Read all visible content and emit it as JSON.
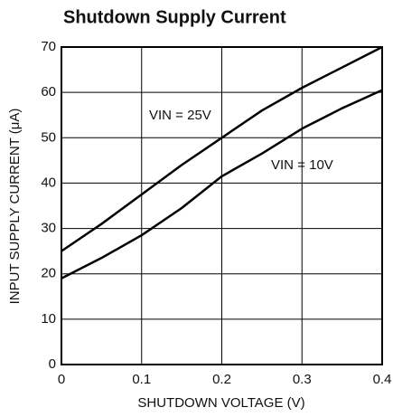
{
  "chart_data": {
    "type": "line",
    "title": "Shutdown Supply Current",
    "xlabel": "SHUTDOWN VOLTAGE (V)",
    "ylabel": "INPUT SUPPLY CURRENT (μA)",
    "x": [
      0,
      0.05,
      0.1,
      0.15,
      0.2,
      0.25,
      0.3,
      0.35,
      0.4
    ],
    "series": [
      {
        "name": "VIN = 25V",
        "color": "#000000",
        "values": [
          25,
          31,
          37.5,
          44,
          50,
          56,
          61,
          65.5,
          70
        ]
      },
      {
        "name": "VIN = 10V",
        "color": "#000000",
        "values": [
          19,
          23.5,
          28.5,
          34.5,
          41.5,
          46.5,
          52,
          56.5,
          60.5
        ]
      }
    ],
    "xlim": [
      0,
      0.4
    ],
    "xticks": [
      0,
      0.1,
      0.2,
      0.3,
      0.4
    ],
    "ylim": [
      0,
      70
    ],
    "yticks": [
      0,
      10,
      20,
      30,
      40,
      50,
      60,
      70
    ],
    "grid": true
  }
}
